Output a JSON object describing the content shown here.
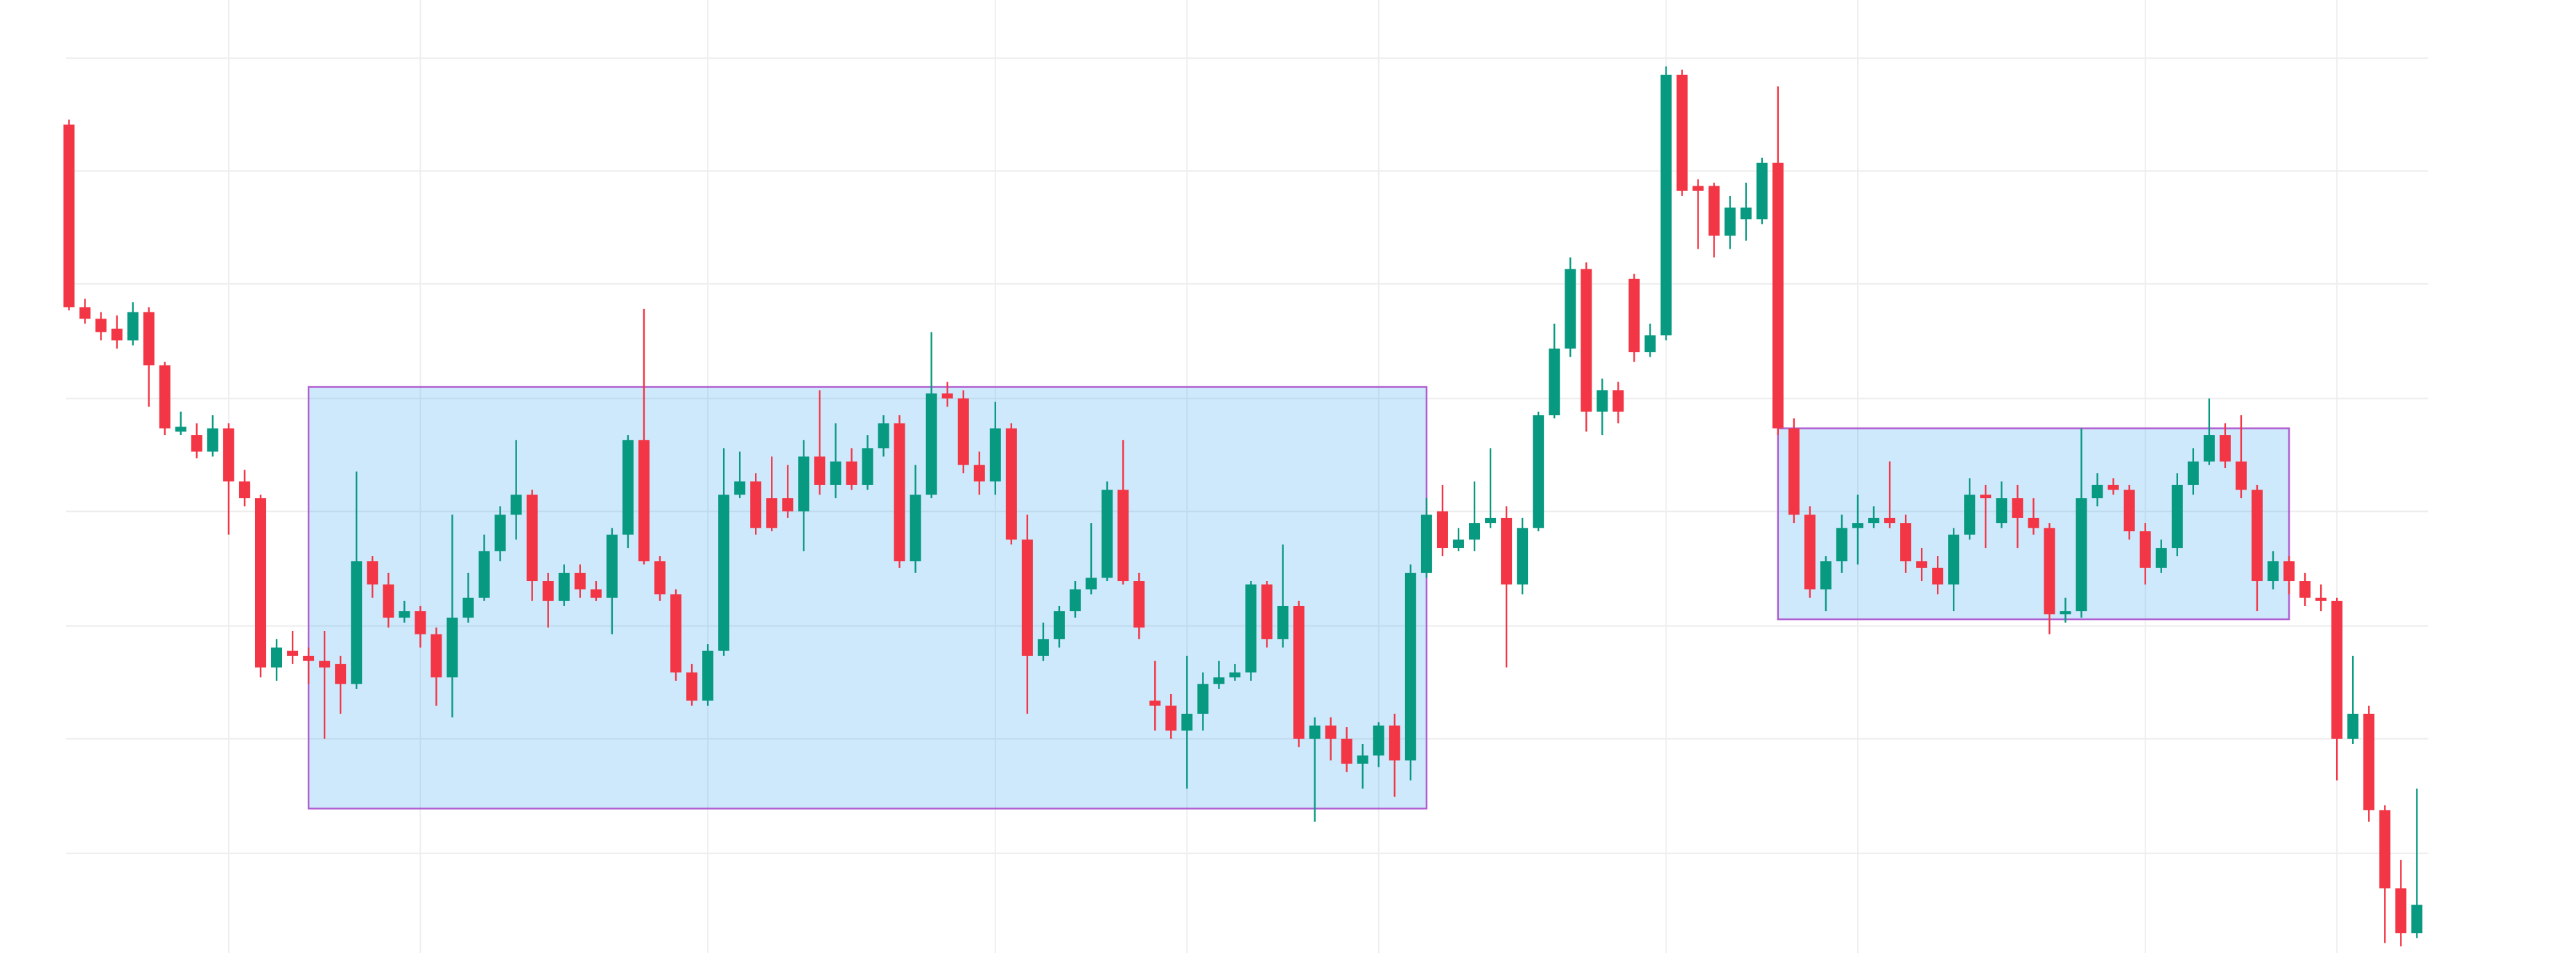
{
  "chart_data": {
    "type": "candlestick",
    "ylim": [
      0,
      574
    ],
    "grid": true,
    "grid_y": [
      539,
      471,
      403,
      334,
      266,
      197,
      129,
      60
    ],
    "grid_x": [
      10,
      22,
      40,
      58,
      70,
      82,
      100,
      112,
      130,
      142
    ],
    "up_color": "#089981",
    "down_color": "#f23645",
    "open": [
      499,
      389,
      382,
      376,
      369,
      386,
      354,
      314,
      312,
      302,
      316,
      284,
      274,
      172,
      182,
      179,
      176,
      174,
      162,
      236,
      222,
      202,
      206,
      192,
      166,
      202,
      214,
      242,
      264,
      276,
      224,
      212,
      229,
      219,
      214,
      252,
      309,
      236,
      216,
      169,
      152,
      182,
      276,
      284,
      274,
      274,
      266,
      299,
      282,
      296,
      282,
      304,
      319,
      236,
      276,
      337,
      334,
      294,
      284,
      316,
      249,
      179,
      189,
      206,
      219,
      226,
      279,
      224,
      152,
      149,
      134,
      144,
      162,
      166,
      169,
      222,
      189,
      209,
      129,
      137,
      129,
      114,
      119,
      137,
      116,
      229,
      266,
      244,
      249,
      259,
      262,
      222,
      256,
      324,
      364,
      412,
      326,
      339,
      406,
      362,
      372,
      529,
      462,
      462,
      432,
      442,
      442,
      476,
      316,
      264,
      219,
      236,
      256,
      259,
      262,
      259,
      236,
      232,
      222,
      252,
      276,
      259,
      274,
      262,
      256,
      204,
      206,
      274,
      282,
      279,
      254,
      232,
      244,
      282,
      296,
      312,
      296,
      279,
      224,
      236,
      224,
      214,
      212,
      129,
      144,
      86,
      39,
      12
    ],
    "high": [
      502,
      394,
      386,
      384,
      392,
      389,
      356,
      326,
      319,
      324,
      319,
      291,
      276,
      189,
      194,
      184,
      194,
      179,
      290,
      239,
      229,
      212,
      209,
      196,
      264,
      229,
      252,
      269,
      309,
      279,
      229,
      234,
      234,
      224,
      256,
      312,
      388,
      239,
      219,
      174,
      186,
      304,
      302,
      289,
      299,
      294,
      309,
      339,
      319,
      304,
      312,
      324,
      324,
      294,
      374,
      344,
      339,
      302,
      332,
      319,
      264,
      199,
      209,
      224,
      259,
      284,
      309,
      229,
      176,
      156,
      179,
      169,
      176,
      174,
      224,
      224,
      246,
      212,
      142,
      142,
      136,
      126,
      139,
      144,
      234,
      274,
      282,
      256,
      284,
      304,
      269,
      262,
      326,
      379,
      419,
      416,
      346,
      344,
      409,
      379,
      534,
      532,
      466,
      464,
      456,
      464,
      479,
      522,
      322,
      269,
      239,
      264,
      276,
      269,
      296,
      264,
      244,
      239,
      256,
      286,
      282,
      284,
      282,
      274,
      259,
      214,
      316,
      289,
      286,
      282,
      259,
      249,
      289,
      304,
      334,
      319,
      324,
      282,
      242,
      239,
      229,
      222,
      214,
      179,
      149,
      89,
      56,
      99
    ],
    "low": [
      387,
      379,
      369,
      364,
      366,
      329,
      312,
      312,
      298,
      299,
      252,
      269,
      166,
      164,
      174,
      162,
      129,
      144,
      159,
      214,
      196,
      199,
      184,
      149,
      142,
      199,
      212,
      236,
      249,
      212,
      196,
      209,
      214,
      212,
      192,
      244,
      234,
      212,
      164,
      149,
      149,
      179,
      274,
      252,
      254,
      262,
      242,
      276,
      274,
      279,
      279,
      299,
      232,
      229,
      274,
      329,
      289,
      276,
      276,
      246,
      144,
      176,
      184,
      202,
      216,
      224,
      222,
      189,
      134,
      129,
      99,
      134,
      159,
      164,
      164,
      184,
      184,
      124,
      79,
      116,
      109,
      99,
      112,
      94,
      104,
      226,
      239,
      242,
      242,
      256,
      172,
      216,
      254,
      322,
      359,
      314,
      312,
      319,
      356,
      359,
      369,
      456,
      424,
      419,
      424,
      429,
      439,
      312,
      259,
      214,
      206,
      229,
      234,
      256,
      256,
      229,
      224,
      216,
      206,
      249,
      244,
      256,
      244,
      252,
      192,
      199,
      202,
      269,
      276,
      249,
      222,
      229,
      239,
      276,
      294,
      292,
      274,
      206,
      219,
      216,
      209,
      206,
      104,
      126,
      79,
      6,
      4,
      9
    ],
    "close": [
      389,
      382,
      374,
      369,
      386,
      354,
      316,
      317,
      302,
      316,
      284,
      274,
      172,
      184,
      179,
      176,
      172,
      162,
      236,
      222,
      202,
      206,
      192,
      166,
      202,
      214,
      242,
      264,
      276,
      224,
      212,
      229,
      219,
      214,
      252,
      309,
      236,
      216,
      169,
      152,
      182,
      276,
      284,
      256,
      256,
      266,
      299,
      282,
      296,
      282,
      304,
      319,
      236,
      276,
      337,
      334,
      294,
      284,
      316,
      249,
      179,
      189,
      206,
      219,
      226,
      279,
      224,
      196,
      149,
      134,
      144,
      162,
      166,
      169,
      222,
      189,
      209,
      129,
      137,
      129,
      114,
      119,
      137,
      116,
      229,
      264,
      244,
      249,
      259,
      262,
      222,
      256,
      324,
      364,
      412,
      326,
      339,
      326,
      362,
      372,
      529,
      459,
      459,
      432,
      449,
      449,
      476,
      316,
      264,
      219,
      236,
      256,
      259,
      262,
      259,
      236,
      232,
      222,
      252,
      276,
      274,
      274,
      262,
      256,
      204,
      206,
      274,
      282,
      279,
      254,
      232,
      244,
      282,
      296,
      312,
      296,
      279,
      224,
      236,
      224,
      214,
      212,
      129,
      144,
      86,
      39,
      12,
      29
    ],
    "boxes": [
      {
        "start": 15,
        "end": 85,
        "top": 341,
        "bottom": 87
      },
      {
        "start": 107,
        "end": 139,
        "top": 316,
        "bottom": 201
      }
    ],
    "box_fill": "rgba(33,150,243,0.22)",
    "box_stroke": "#b05fd0"
  }
}
